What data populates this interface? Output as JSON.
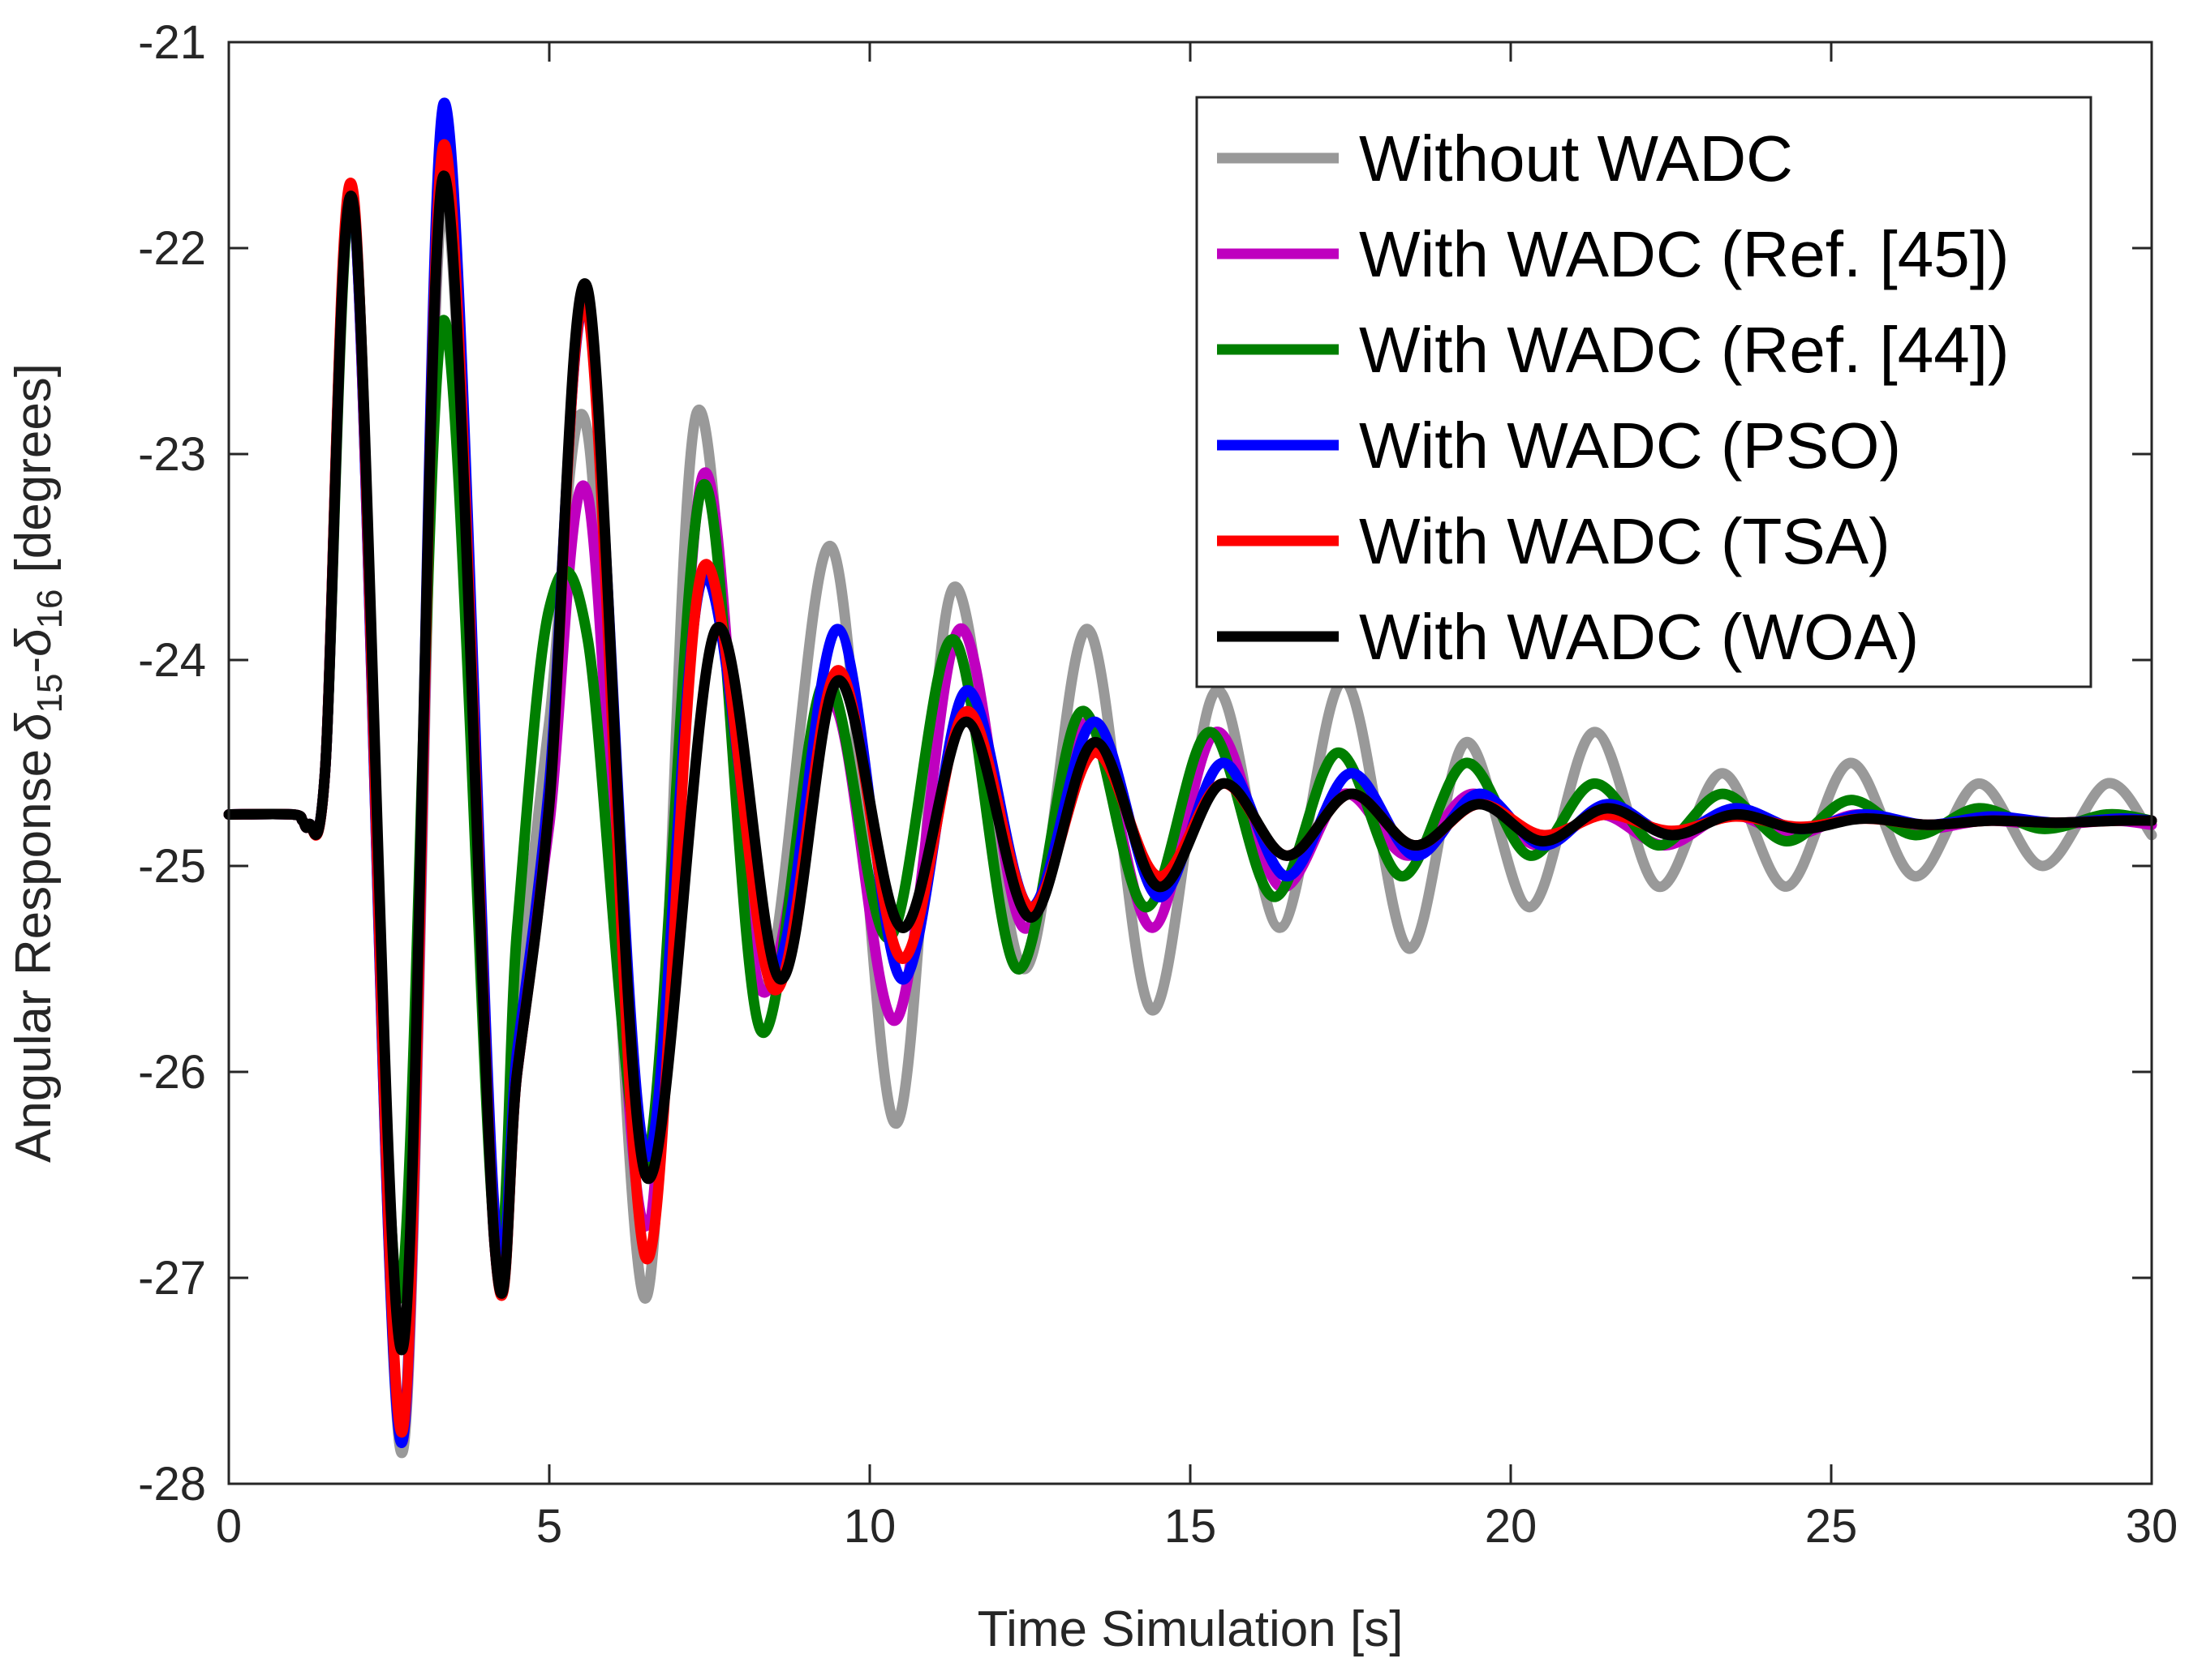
{
  "chart_data": {
    "type": "line",
    "title": "",
    "xlabel": "Time Simulation [s]",
    "ylabel": {
      "prefix": "Angular Response",
      "delta1": "δ",
      "sub1": "15",
      "dash": "-",
      "delta2": "δ",
      "sub2": "16",
      "suffix": "[degrees]"
    },
    "xlim": [
      0,
      30
    ],
    "ylim": [
      -28,
      -21
    ],
    "xticks": [
      0,
      5,
      10,
      15,
      20,
      25,
      30
    ],
    "xtick_labels": [
      "0",
      "5",
      "10",
      "15",
      "20",
      "25",
      "30"
    ],
    "yticks": [
      -21,
      -22,
      -23,
      -24,
      -25,
      -26,
      -27,
      -28
    ],
    "ytick_labels": [
      "-21",
      "-22",
      "-23",
      "-24",
      "-25",
      "-26",
      "-27",
      "-28"
    ],
    "grid": false,
    "legend_position": "top-right",
    "series": [
      {
        "name": "Without WADC",
        "color": "#999999",
        "x": [
          0,
          1.0,
          1.15,
          1.25,
          1.5,
          1.95,
          2.7,
          3.35,
          4.15,
          4.5,
          5.0,
          5.6,
          6.5,
          7.3,
          8.3,
          9.4,
          10.4,
          11.3,
          12.4,
          13.4,
          14.4,
          15.4,
          16.4,
          17.4,
          18.4,
          19.3,
          20.3,
          21.3,
          22.3,
          23.3,
          24.3,
          25.3,
          26.3,
          27.3,
          28.3,
          29.3,
          30
        ],
        "y": [
          -24.75,
          -24.75,
          -24.78,
          -24.8,
          -24.55,
          -21.8,
          -27.85,
          -21.75,
          -26.85,
          -25.7,
          -24.3,
          -22.9,
          -27.1,
          -22.8,
          -25.6,
          -23.45,
          -26.25,
          -23.65,
          -25.5,
          -23.85,
          -25.7,
          -24.15,
          -25.3,
          -24.1,
          -25.4,
          -24.4,
          -25.2,
          -24.35,
          -25.1,
          -24.55,
          -25.1,
          -24.5,
          -25.05,
          -24.6,
          -25.0,
          -24.6,
          -24.85
        ]
      },
      {
        "name": "With WADC (Ref. [45])",
        "color": "#bf00bf",
        "x": [
          0,
          1.0,
          1.15,
          1.25,
          1.5,
          1.95,
          2.7,
          3.35,
          4.15,
          4.5,
          5.0,
          5.6,
          6.5,
          7.4,
          8.3,
          9.4,
          10.4,
          11.4,
          12.4,
          13.4,
          14.4,
          15.4,
          16.4,
          17.4,
          18.4,
          19.4,
          20.4,
          21.4,
          22.4,
          23.4,
          24.4,
          25.4,
          26.4,
          27.4,
          28.4,
          29.4,
          30
        ],
        "y": [
          -24.75,
          -24.75,
          -24.78,
          -24.8,
          -24.55,
          -21.8,
          -27.8,
          -21.6,
          -26.85,
          -26.0,
          -24.8,
          -23.2,
          -26.75,
          -23.1,
          -25.6,
          -24.2,
          -25.75,
          -23.85,
          -25.3,
          -24.3,
          -25.3,
          -24.35,
          -25.1,
          -24.65,
          -24.95,
          -24.65,
          -24.9,
          -24.75,
          -24.9,
          -24.75,
          -24.85,
          -24.75,
          -24.82,
          -24.78,
          -24.8,
          -24.78,
          -24.8
        ]
      },
      {
        "name": "With WADC (Ref. [44])",
        "color": "#007f00",
        "x": [
          0,
          1.0,
          1.15,
          1.25,
          1.5,
          1.95,
          2.65,
          3.35,
          4.15,
          4.5,
          5.0,
          5.6,
          6.5,
          7.4,
          8.3,
          9.3,
          10.3,
          11.3,
          12.3,
          13.3,
          14.3,
          15.3,
          16.3,
          17.3,
          18.3,
          19.3,
          20.3,
          21.3,
          22.3,
          23.3,
          24.3,
          25.3,
          26.3,
          27.3,
          28.3,
          29.3,
          30
        ],
        "y": [
          -24.75,
          -24.75,
          -24.78,
          -24.8,
          -24.55,
          -21.8,
          -27.1,
          -22.35,
          -26.8,
          -25.3,
          -23.75,
          -23.9,
          -26.45,
          -23.15,
          -25.8,
          -24.1,
          -25.35,
          -23.9,
          -25.5,
          -24.25,
          -25.2,
          -24.35,
          -25.15,
          -24.45,
          -25.05,
          -24.5,
          -24.95,
          -24.6,
          -24.9,
          -24.65,
          -24.88,
          -24.68,
          -24.85,
          -24.72,
          -24.82,
          -24.75,
          -24.78
        ]
      },
      {
        "name": "With WADC (PSO)",
        "color": "#0000ff",
        "x": [
          0,
          1.0,
          1.15,
          1.25,
          1.5,
          1.95,
          2.7,
          3.35,
          4.15,
          4.5,
          5.0,
          5.6,
          6.5,
          7.4,
          8.5,
          9.5,
          10.5,
          11.5,
          12.5,
          13.5,
          14.5,
          15.5,
          16.5,
          17.5,
          18.5,
          19.5,
          20.5,
          21.5,
          22.5,
          23.5,
          24.5,
          25.5,
          26.5,
          27.5,
          28.5,
          29.5,
          30
        ],
        "y": [
          -24.75,
          -24.75,
          -24.78,
          -24.8,
          -24.55,
          -21.8,
          -27.8,
          -21.3,
          -26.7,
          -25.9,
          -24.6,
          -22.3,
          -26.4,
          -23.6,
          -25.5,
          -23.85,
          -25.55,
          -24.15,
          -25.2,
          -24.3,
          -25.15,
          -24.5,
          -25.05,
          -24.55,
          -24.95,
          -24.65,
          -24.9,
          -24.7,
          -24.85,
          -24.72,
          -24.82,
          -24.75,
          -24.8,
          -24.76,
          -24.79,
          -24.77,
          -24.78
        ]
      },
      {
        "name": "With WADC (TSA)",
        "color": "#ff0000",
        "x": [
          0,
          1.0,
          1.15,
          1.25,
          1.5,
          1.95,
          2.7,
          3.35,
          4.15,
          4.5,
          5.0,
          5.6,
          6.5,
          7.4,
          8.5,
          9.5,
          10.5,
          11.5,
          12.5,
          13.5,
          14.5,
          15.5,
          16.5,
          17.5,
          18.5,
          19.5,
          20.5,
          21.5,
          22.5,
          23.5,
          24.5,
          25.5,
          26.5,
          27.5,
          28.5,
          29.5,
          30
        ],
        "y": [
          -24.75,
          -24.75,
          -24.78,
          -24.8,
          -24.55,
          -21.75,
          -27.75,
          -21.5,
          -26.85,
          -26.0,
          -24.7,
          -22.3,
          -26.9,
          -23.55,
          -25.6,
          -24.05,
          -25.45,
          -24.25,
          -25.2,
          -24.45,
          -25.05,
          -24.6,
          -24.95,
          -24.65,
          -24.9,
          -24.7,
          -24.85,
          -24.75,
          -24.83,
          -24.76,
          -24.81,
          -24.77,
          -24.8,
          -24.78,
          -24.79,
          -24.78,
          -24.78
        ]
      },
      {
        "name": "With WADC (WOA)",
        "color": "#000000",
        "x": [
          0,
          1.0,
          1.15,
          1.25,
          1.5,
          1.95,
          2.7,
          3.35,
          4.15,
          4.5,
          5.0,
          5.6,
          6.5,
          7.6,
          8.6,
          9.5,
          10.5,
          11.5,
          12.5,
          13.5,
          14.5,
          15.5,
          16.5,
          17.5,
          18.5,
          19.5,
          20.5,
          21.5,
          22.5,
          23.5,
          24.5,
          25.5,
          26.5,
          27.5,
          28.5,
          29.5,
          30
        ],
        "y": [
          -24.75,
          -24.75,
          -24.78,
          -24.8,
          -24.55,
          -21.8,
          -27.35,
          -21.65,
          -26.85,
          -26.0,
          -24.7,
          -22.2,
          -26.5,
          -23.85,
          -25.55,
          -24.1,
          -25.3,
          -24.3,
          -25.25,
          -24.4,
          -25.1,
          -24.6,
          -24.95,
          -24.65,
          -24.9,
          -24.7,
          -24.88,
          -24.72,
          -24.85,
          -24.75,
          -24.82,
          -24.77,
          -24.8,
          -24.78,
          -24.79,
          -24.78,
          -24.78
        ]
      }
    ]
  }
}
